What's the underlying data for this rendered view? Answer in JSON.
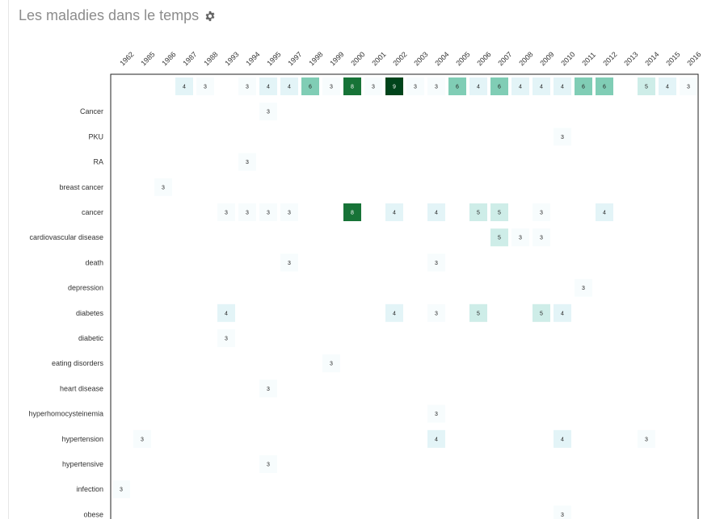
{
  "page": {
    "title": "Les maladies dans le temps",
    "settings_icon": "gear-icon"
  },
  "chart_data": {
    "type": "heatmap",
    "title": "Les maladies dans le temps",
    "color_scale": [
      "#f7fcfd",
      "#00441b"
    ],
    "years": [
      "1962",
      "1985",
      "1986",
      "1987",
      "1988",
      "1993",
      "1994",
      "1995",
      "1997",
      "1998",
      "1999",
      "2000",
      "2001",
      "2002",
      "2003",
      "2004",
      "2005",
      "2006",
      "2007",
      "2008",
      "2009",
      "2010",
      "2011",
      "2012",
      "2013",
      "2014",
      "2015",
      "2016"
    ],
    "rows": [
      {
        "label": "",
        "values": {
          "1987": 4,
          "1988": 3,
          "1994": 3,
          "1995": 4,
          "1997": 4,
          "1998": 6,
          "1999": 3,
          "2000": 8,
          "2001": 3,
          "2002": 9,
          "2003": 3,
          "2004": 3,
          "2005": 6,
          "2006": 4,
          "2007": 6,
          "2008": 4,
          "2009": 4,
          "2010": 4,
          "2011": 6,
          "2012": 6,
          "2014": 5,
          "2015": 4,
          "2016": 3
        }
      },
      {
        "label": "Cancer",
        "values": {
          "1995": 3
        }
      },
      {
        "label": "PKU",
        "values": {
          "2010": 3
        }
      },
      {
        "label": "RA",
        "values": {
          "1994": 3
        }
      },
      {
        "label": "breast cancer",
        "values": {
          "1986": 3
        }
      },
      {
        "label": "cancer",
        "values": {
          "1993": 3,
          "1994": 3,
          "1995": 3,
          "1997": 3,
          "2000": 8,
          "2002": 4,
          "2004": 4,
          "2006": 5,
          "2007": 5,
          "2009": 3,
          "2012": 4
        }
      },
      {
        "label": "cardiovascular disease",
        "values": {
          "2007": 5,
          "2008": 3,
          "2009": 3
        }
      },
      {
        "label": "death",
        "values": {
          "1997": 3,
          "2004": 3
        }
      },
      {
        "label": "depression",
        "values": {
          "2011": 3
        }
      },
      {
        "label": "diabetes",
        "values": {
          "1993": 4,
          "2002": 4,
          "2004": 3,
          "2006": 5,
          "2009": 5,
          "2010": 4
        }
      },
      {
        "label": "diabetic",
        "values": {
          "1993": 3
        }
      },
      {
        "label": "eating disorders",
        "values": {
          "1999": 3
        }
      },
      {
        "label": "heart disease",
        "values": {
          "1995": 3
        }
      },
      {
        "label": "hyperhomocysteinemia",
        "values": {
          "2004": 3
        }
      },
      {
        "label": "hypertension",
        "values": {
          "1985": 3,
          "2004": 4,
          "2010": 4,
          "2014": 3
        }
      },
      {
        "label": "hypertensive",
        "values": {
          "1995": 3
        }
      },
      {
        "label": "infection",
        "values": {
          "1962": 3
        }
      },
      {
        "label": "obese",
        "values": {
          "2010": 3
        }
      }
    ]
  }
}
